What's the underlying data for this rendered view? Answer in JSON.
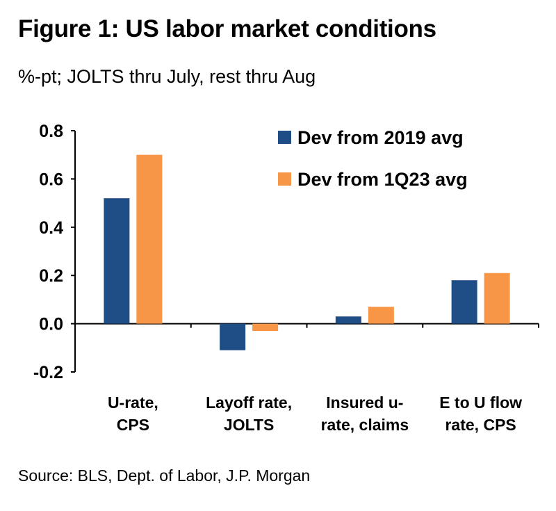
{
  "header": {
    "title": "Figure 1: US labor market conditions",
    "subtitle": "%-pt; JOLTS thru July, rest thru Aug"
  },
  "footer": {
    "source": "Source: BLS, Dept. of Labor, J.P. Morgan"
  },
  "chart_data": {
    "type": "bar",
    "title": "Figure 1: US labor market conditions",
    "subtitle": "%-pt; JOLTS thru July, rest thru Aug",
    "categories": [
      [
        "U-rate,",
        "CPS"
      ],
      [
        "Layoff rate,",
        "JOLTS"
      ],
      [
        "Insured u-",
        "rate, claims"
      ],
      [
        "E to U flow",
        "rate, CPS"
      ]
    ],
    "series": [
      {
        "name": "Dev from 2019 avg",
        "color": "#1f4e86",
        "values": [
          0.52,
          -0.11,
          0.03,
          0.18
        ]
      },
      {
        "name": "Dev from 1Q23 avg",
        "color": "#f79646",
        "values": [
          0.7,
          -0.03,
          0.07,
          0.21
        ]
      }
    ],
    "ylim": [
      -0.2,
      0.8
    ],
    "yticks": [
      "0.8",
      "0.6",
      "0.4",
      "0.2",
      "0.0",
      "-0.2"
    ],
    "ytick_values": [
      0.8,
      0.6,
      0.4,
      0.2,
      0.0,
      -0.2
    ],
    "xlabel": "",
    "ylabel": "",
    "grid": false,
    "legend_position": "top-right"
  }
}
